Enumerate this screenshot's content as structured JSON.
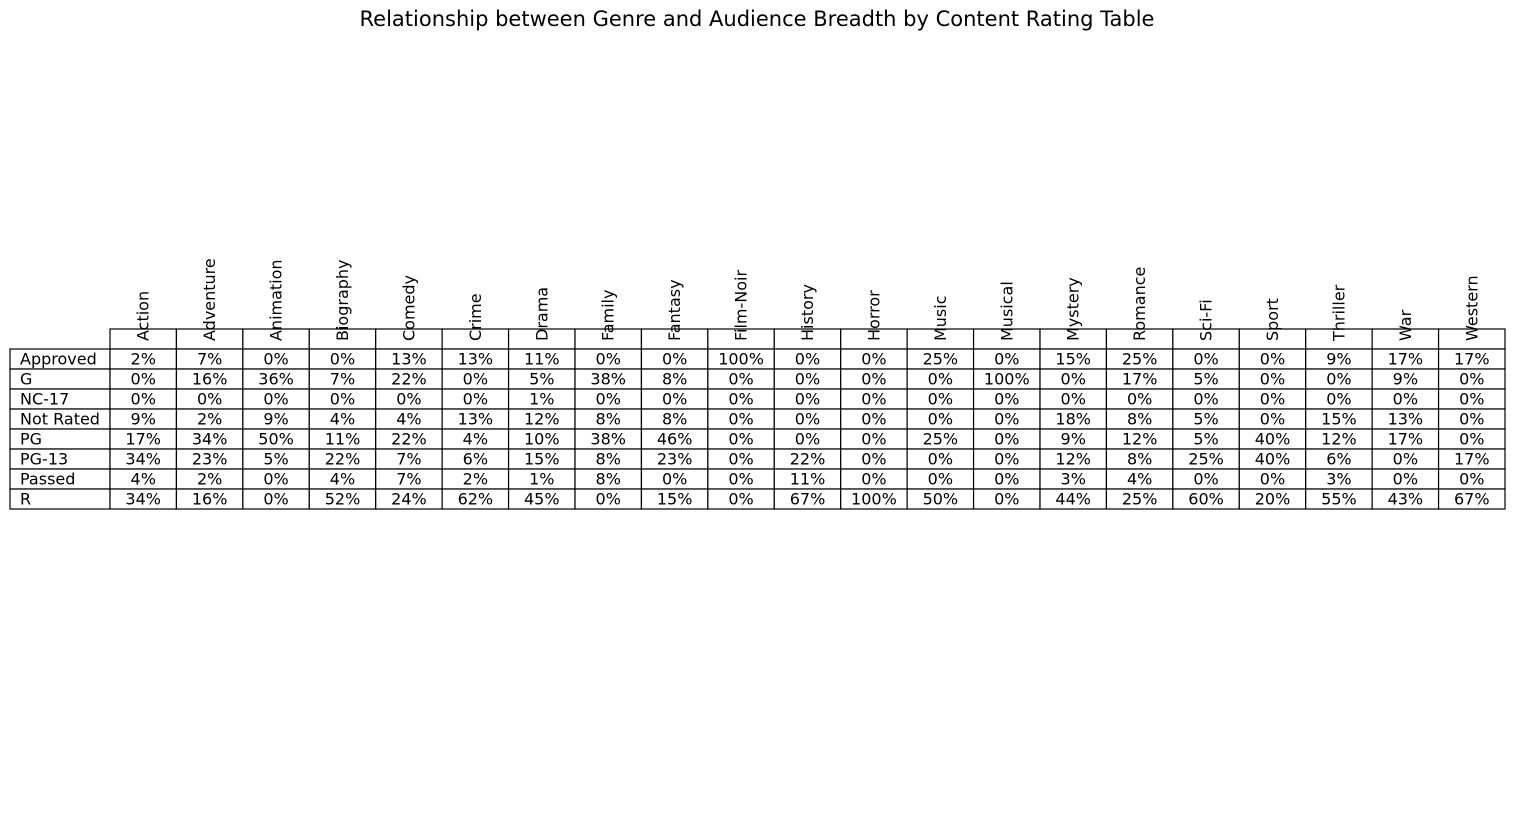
{
  "chart_data": {
    "type": "table",
    "title": "Relationship between Genre and Audience Breadth by Content Rating Table",
    "columns": [
      "Action",
      "Adventure",
      "Animation",
      "Biography",
      "Comedy",
      "Crime",
      "Drama",
      "Family",
      "Fantasy",
      "Film-Noir",
      "History",
      "Horror",
      "Music",
      "Musical",
      "Mystery",
      "Romance",
      "Sci-Fi",
      "Sport",
      "Thriller",
      "War",
      "Western"
    ],
    "rows": [
      {
        "label": "Approved",
        "values": [
          "2%",
          "7%",
          "0%",
          "0%",
          "13%",
          "13%",
          "11%",
          "0%",
          "0%",
          "100%",
          "0%",
          "0%",
          "25%",
          "0%",
          "15%",
          "25%",
          "0%",
          "0%",
          "9%",
          "17%",
          "17%"
        ]
      },
      {
        "label": "G",
        "values": [
          "0%",
          "16%",
          "36%",
          "7%",
          "22%",
          "0%",
          "5%",
          "38%",
          "8%",
          "0%",
          "0%",
          "0%",
          "0%",
          "100%",
          "0%",
          "17%",
          "5%",
          "0%",
          "0%",
          "9%",
          "0%"
        ]
      },
      {
        "label": "NC-17",
        "values": [
          "0%",
          "0%",
          "0%",
          "0%",
          "0%",
          "0%",
          "1%",
          "0%",
          "0%",
          "0%",
          "0%",
          "0%",
          "0%",
          "0%",
          "0%",
          "0%",
          "0%",
          "0%",
          "0%",
          "0%",
          "0%"
        ]
      },
      {
        "label": "Not Rated",
        "values": [
          "9%",
          "2%",
          "9%",
          "4%",
          "4%",
          "13%",
          "12%",
          "8%",
          "8%",
          "0%",
          "0%",
          "0%",
          "0%",
          "0%",
          "18%",
          "8%",
          "5%",
          "0%",
          "15%",
          "13%",
          "0%"
        ]
      },
      {
        "label": "PG",
        "values": [
          "17%",
          "34%",
          "50%",
          "11%",
          "22%",
          "4%",
          "10%",
          "38%",
          "46%",
          "0%",
          "0%",
          "0%",
          "25%",
          "0%",
          "9%",
          "12%",
          "5%",
          "40%",
          "12%",
          "17%",
          "0%"
        ]
      },
      {
        "label": "PG-13",
        "values": [
          "34%",
          "23%",
          "5%",
          "22%",
          "7%",
          "6%",
          "15%",
          "8%",
          "23%",
          "0%",
          "22%",
          "0%",
          "0%",
          "0%",
          "12%",
          "8%",
          "25%",
          "40%",
          "6%",
          "0%",
          "17%"
        ]
      },
      {
        "label": "Passed",
        "values": [
          "4%",
          "2%",
          "0%",
          "4%",
          "7%",
          "2%",
          "1%",
          "8%",
          "0%",
          "0%",
          "11%",
          "0%",
          "0%",
          "0%",
          "3%",
          "4%",
          "0%",
          "0%",
          "3%",
          "0%",
          "0%"
        ]
      },
      {
        "label": "R",
        "values": [
          "34%",
          "16%",
          "0%",
          "52%",
          "24%",
          "62%",
          "45%",
          "0%",
          "15%",
          "0%",
          "67%",
          "100%",
          "50%",
          "0%",
          "44%",
          "25%",
          "60%",
          "20%",
          "55%",
          "43%",
          "67%"
        ]
      }
    ]
  }
}
